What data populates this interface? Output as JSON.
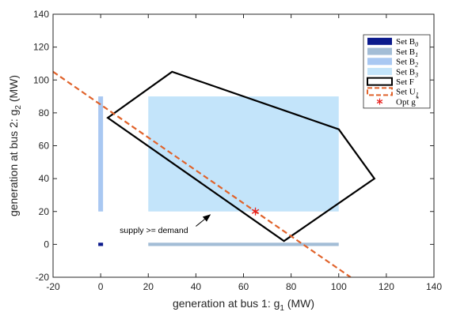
{
  "chart_data": {
    "type": "area",
    "xlabel": "generation at bus 1: g",
    "xlabel_sub": "1",
    "xlabel_unit": " (MW)",
    "ylabel": "generation at bus 2: g",
    "ylabel_sub": "2",
    "ylabel_unit": " (MW)",
    "xlim": [
      -20,
      140
    ],
    "ylim": [
      -20,
      140
    ],
    "xticks": [
      -20,
      0,
      20,
      40,
      60,
      80,
      100,
      120,
      140
    ],
    "yticks": [
      -20,
      0,
      20,
      40,
      60,
      80,
      100,
      120,
      140
    ],
    "grid": false,
    "legend_position": "top-right",
    "series": [
      {
        "name": "Set B",
        "sub": "0",
        "kind": "rect",
        "color": "#0b1a8c",
        "x": [
          -1,
          1
        ],
        "y": [
          -1,
          1
        ]
      },
      {
        "name": "Set B",
        "sub": "1",
        "kind": "rect",
        "color": "#a3bdd6",
        "x": [
          20,
          100
        ],
        "y": [
          -1,
          1
        ]
      },
      {
        "name": "Set B",
        "sub": "2",
        "kind": "rect",
        "color": "#a9c8f2",
        "x": [
          -1,
          1
        ],
        "y": [
          20,
          90
        ]
      },
      {
        "name": "Set B",
        "sub": "3",
        "kind": "rect",
        "color": "#c3e4fa",
        "x": [
          20,
          100
        ],
        "y": [
          20,
          90
        ]
      },
      {
        "name": "Set F",
        "sub": "",
        "kind": "polygon",
        "color": "#000000",
        "points": [
          [
            3,
            77
          ],
          [
            30,
            105
          ],
          [
            100,
            70
          ],
          [
            115,
            40
          ],
          [
            77,
            2
          ]
        ]
      },
      {
        "name": "Set U",
        "sub": "1",
        "kind": "dashed-line",
        "color": "#e0622a",
        "points": [
          [
            -20,
            105
          ],
          [
            -5,
            90
          ],
          [
            10,
            75
          ],
          [
            25,
            60
          ],
          [
            40,
            45
          ],
          [
            55,
            30
          ],
          [
            65,
            20
          ],
          [
            80,
            5
          ],
          [
            90,
            -5
          ],
          [
            105,
            -20
          ]
        ]
      },
      {
        "name": "Opt g",
        "sub": "",
        "sup": "*",
        "kind": "marker",
        "color": "#e8211f",
        "x": 65,
        "y": 20
      }
    ],
    "annotations": [
      {
        "text": "supply >= demand",
        "text_at": [
          8,
          7
        ],
        "arrow_from": [
          40,
          11
        ],
        "arrow_to": [
          46,
          18
        ]
      }
    ]
  }
}
